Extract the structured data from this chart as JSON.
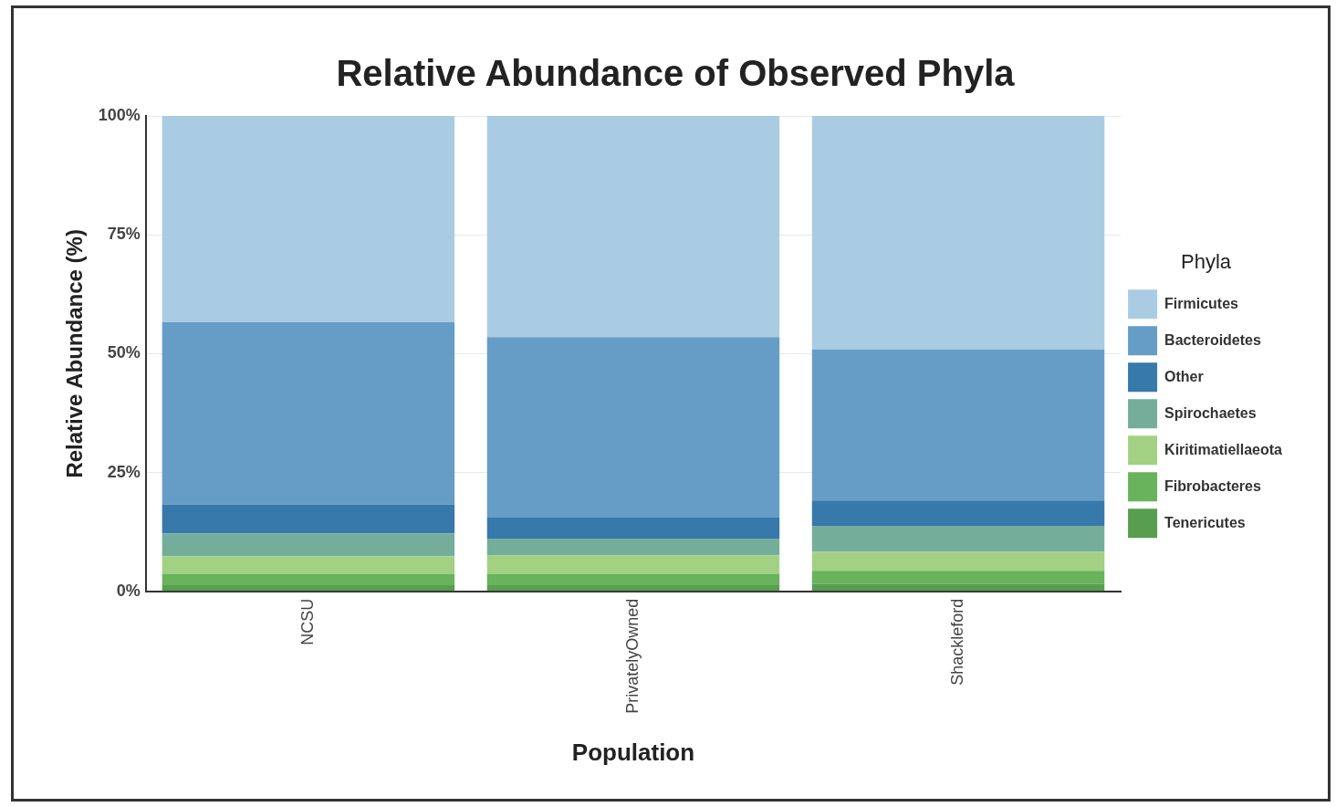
{
  "chart_data": {
    "type": "bar",
    "title": "Relative Abundance of Observed Phyla",
    "xlabel": "Population",
    "ylabel": "Relative Abundance (%)",
    "legend_title": "Phyla",
    "categories": [
      "NCSU",
      "PrivatelyOwned",
      "Shackleford"
    ],
    "stacked": true,
    "legend": "right",
    "grid": "y",
    "ylim": [
      0,
      100
    ],
    "yticks": [
      {
        "value": 0,
        "label": "0%"
      },
      {
        "value": 25,
        "label": "25%"
      },
      {
        "value": 50,
        "label": "50%"
      },
      {
        "value": 75,
        "label": "75%"
      },
      {
        "value": 100,
        "label": "100%"
      }
    ],
    "series": [
      {
        "name": "Tenericutes",
        "color": "#579e4e",
        "values": [
          1.3,
          1.3,
          1.6
        ]
      },
      {
        "name": "Fibrobacteres",
        "color": "#68b35c",
        "values": [
          2.4,
          2.4,
          2.7
        ]
      },
      {
        "name": "Kiritimatiellaeota",
        "color": "#a2d183",
        "values": [
          3.7,
          3.9,
          4.0
        ]
      },
      {
        "name": "Spirochaetes",
        "color": "#74ae9a",
        "values": [
          4.8,
          3.5,
          5.5
        ]
      },
      {
        "name": "Other",
        "color": "#3779ab",
        "values": [
          6.1,
          4.4,
          5.3
        ]
      },
      {
        "name": "Bacteroidetes",
        "color": "#669dc6",
        "values": [
          38.3,
          38.0,
          31.8
        ]
      },
      {
        "name": "Firmicutes",
        "color": "#a9cce3",
        "values": [
          43.4,
          46.5,
          49.1
        ]
      }
    ]
  }
}
